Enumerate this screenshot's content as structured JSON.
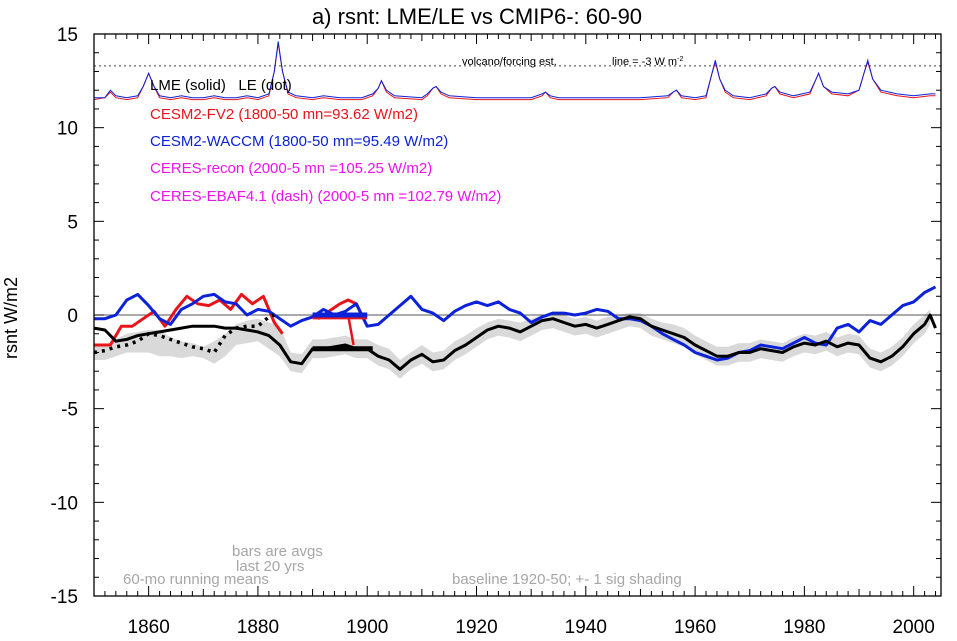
{
  "chart_data": {
    "type": "line",
    "title": "a) rsnt: LME/LE vs CMIP6-: 60-90",
    "xlabel": "",
    "ylabel": "rsnt W/m2",
    "xlim": [
      1850,
      2005
    ],
    "ylim": [
      -15,
      15
    ],
    "x_ticks": [
      1860,
      1880,
      1900,
      1920,
      1940,
      1960,
      1980,
      2000
    ],
    "y_ticks": [
      -15,
      -10,
      -5,
      0,
      5,
      10,
      15
    ],
    "x_tick_labels": [
      "1860",
      "1880",
      "1900",
      "1920",
      "1940",
      "1960",
      "1980",
      "2000"
    ],
    "y_tick_labels": [
      "-15",
      "-10",
      "-5",
      "0",
      "5",
      "10",
      "15"
    ],
    "zero_line": 0,
    "legend": {
      "header": "LME (solid)   LE (dot)",
      "entries": [
        {
          "label": "CESM2-FV2 (1800-50 mn=93.62 W/m2)",
          "color": "#e8141b"
        },
        {
          "label": "CESM2-WACCM (1800-50 mn=95.49 W/m2)",
          "color": "#0c22d8"
        },
        {
          "label": "CERES-recon (2000-5 mn =105.25 W/m2)",
          "color": "#ee12ee"
        },
        {
          "label": "CERES-EBAF4.1 (dash) (2000-5 mn =102.79 W/m2)",
          "color": "#ee12ee"
        }
      ]
    },
    "annotations": {
      "volcano": "volcano/forcing est.",
      "line": "line = -3 W m",
      "line_sup": "-2",
      "bars": "bars are avgs",
      "last20": "last 20 yrs",
      "running": "60-mo running means",
      "baseline": "baseline 1920-50; +- 1 sig shading"
    },
    "volcano_reference_level": 13.3,
    "series": [
      {
        "name": "CESM2-FV2",
        "color": "#e8141b",
        "x": [
          1850,
          1853,
          1855,
          1857,
          1859,
          1861,
          1863,
          1865,
          1867,
          1869,
          1871,
          1873,
          1875,
          1877,
          1879,
          1881,
          1883,
          1884.5
        ],
        "values": [
          -1.6,
          -1.6,
          -0.6,
          -0.6,
          -0.2,
          0.2,
          -0.6,
          0.3,
          1.0,
          0.6,
          0.5,
          0.8,
          0.3,
          1.1,
          0.6,
          1.0,
          -0.4,
          -1.0
        ]
      },
      {
        "name": "CESM2-FV2 (1890-1900)",
        "color": "#e8141b",
        "x": [
          1891,
          1893,
          1895,
          1896.5,
          1898,
          1899
        ],
        "values": [
          -0.2,
          0.2,
          0.6,
          0.8,
          0.6,
          0.0
        ]
      },
      {
        "name": "CESM2-WACCM",
        "color": "#0c22d8",
        "x": [
          1850,
          1852,
          1854,
          1856,
          1858,
          1860,
          1862,
          1864,
          1866,
          1868,
          1870,
          1872,
          1874,
          1876,
          1878,
          1880,
          1882,
          1884,
          1886,
          1888,
          1890,
          1892,
          1894,
          1896,
          1898,
          1900,
          1902,
          1904,
          1906,
          1908,
          1910,
          1912,
          1914,
          1916,
          1918,
          1920,
          1922,
          1924,
          1926,
          1928,
          1930,
          1932,
          1934,
          1936,
          1938,
          1940,
          1942,
          1944,
          1946,
          1948,
          1950,
          1952,
          1954,
          1956,
          1958,
          1960,
          1962,
          1964,
          1966,
          1968,
          1970,
          1972,
          1974,
          1976,
          1978,
          1980,
          1982,
          1984,
          1986,
          1988,
          1990,
          1992,
          1994,
          1996,
          1998,
          2000,
          2002,
          2004
        ],
        "values": [
          -0.2,
          -0.2,
          0.0,
          0.8,
          1.1,
          0.5,
          -0.2,
          -0.5,
          0.3,
          0.6,
          1.0,
          1.1,
          0.7,
          0.6,
          0.0,
          0.3,
          0.2,
          -0.2,
          -0.6,
          -0.3,
          -0.1,
          0.3,
          0.0,
          0.2,
          0.6,
          -0.6,
          -0.5,
          0.0,
          0.5,
          1.0,
          0.3,
          0.1,
          -0.3,
          0.2,
          0.5,
          0.7,
          0.5,
          0.7,
          0.3,
          0.1,
          -0.4,
          -0.1,
          0.1,
          0.1,
          0.0,
          0.1,
          0.3,
          0.2,
          -0.2,
          -0.2,
          -0.3,
          -0.6,
          -1.0,
          -1.3,
          -1.6,
          -2.0,
          -2.2,
          -2.4,
          -2.3,
          -2.0,
          -1.9,
          -1.6,
          -1.7,
          -1.8,
          -1.5,
          -1.2,
          -1.5,
          -1.6,
          -0.7,
          -0.5,
          -0.9,
          -0.3,
          -0.5,
          0.0,
          0.5,
          0.7,
          1.2,
          1.5
        ]
      },
      {
        "name": "LME mean",
        "color": "#000000",
        "x": [
          1850,
          1852,
          1854,
          1856,
          1858,
          1860,
          1862,
          1864,
          1866,
          1868,
          1870,
          1872,
          1874,
          1876,
          1878,
          1880,
          1882,
          1884,
          1886,
          1888,
          1890,
          1892,
          1894,
          1896,
          1898,
          1900,
          1902,
          1904,
          1906,
          1908,
          1910,
          1912,
          1914,
          1916,
          1918,
          1920,
          1922,
          1924,
          1926,
          1928,
          1930,
          1932,
          1934,
          1936,
          1938,
          1940,
          1942,
          1944,
          1946,
          1948,
          1950,
          1952,
          1954,
          1956,
          1958,
          1960,
          1962,
          1964,
          1966,
          1968,
          1970,
          1972,
          1974,
          1976,
          1978,
          1980,
          1982,
          1984,
          1986,
          1988,
          1990,
          1992,
          1994,
          1996,
          1998,
          2000,
          2002,
          2003,
          2004
        ],
        "values": [
          -0.7,
          -0.8,
          -1.4,
          -1.3,
          -1.1,
          -1.0,
          -0.9,
          -0.8,
          -0.7,
          -0.6,
          -0.6,
          -0.6,
          -0.7,
          -0.7,
          -0.8,
          -0.9,
          -1.1,
          -1.6,
          -2.5,
          -2.6,
          -1.8,
          -1.8,
          -1.7,
          -1.6,
          -1.8,
          -1.8,
          -2.2,
          -2.4,
          -2.9,
          -2.4,
          -2.1,
          -2.5,
          -2.4,
          -1.9,
          -1.6,
          -1.2,
          -0.8,
          -0.6,
          -0.7,
          -0.9,
          -0.6,
          -0.3,
          -0.2,
          -0.4,
          -0.6,
          -0.5,
          -0.7,
          -0.5,
          -0.3,
          -0.1,
          -0.2,
          -0.6,
          -0.8,
          -1.0,
          -1.2,
          -1.6,
          -1.9,
          -2.2,
          -2.2,
          -2.0,
          -2.0,
          -1.8,
          -1.9,
          -2.0,
          -1.7,
          -1.5,
          -1.6,
          -1.4,
          -1.7,
          -1.5,
          -1.6,
          -2.3,
          -2.5,
          -2.2,
          -1.7,
          -1.0,
          -0.5,
          0.0,
          -0.7
        ]
      },
      {
        "name": "LE mean (dot)",
        "color": "#000000",
        "x": [
          1850,
          1852,
          1854,
          1856,
          1858,
          1860,
          1862,
          1864,
          1866,
          1868,
          1870,
          1872,
          1874,
          1876,
          1878,
          1880,
          1882,
          1883
        ],
        "values": [
          -2.0,
          -1.9,
          -1.7,
          -1.6,
          -1.4,
          -1.0,
          -1.1,
          -1.3,
          -1.5,
          -1.7,
          -1.8,
          -2.0,
          -1.1,
          -0.7,
          -0.6,
          -0.6,
          -0.1,
          0.0
        ]
      }
    ],
    "shading": {
      "color": "#d9d9d9",
      "x": [
        1850,
        1852,
        1854,
        1856,
        1858,
        1860,
        1862,
        1864,
        1866,
        1868,
        1870,
        1872,
        1874,
        1876,
        1878,
        1880,
        1882,
        1884,
        1886,
        1888,
        1890,
        1892,
        1894,
        1896,
        1898,
        1900,
        1902,
        1904,
        1906,
        1908,
        1910,
        1912,
        1914,
        1916,
        1918,
        1920,
        1922,
        1924,
        1926,
        1928,
        1930,
        1932,
        1934,
        1936,
        1938,
        1940,
        1942,
        1944,
        1946,
        1948,
        1950,
        1952,
        1954,
        1956,
        1958,
        1960,
        1962,
        1964,
        1966,
        1968,
        1970,
        1972,
        1974,
        1976,
        1978,
        1980,
        1982,
        1984,
        1986,
        1988,
        1990,
        1992,
        1994,
        1996,
        1998,
        2000,
        2002,
        2003
      ],
      "upper": [
        -1.6,
        -1.6,
        -1.3,
        -1.0,
        -0.9,
        -0.8,
        -0.8,
        -1.2,
        -1.4,
        -1.5,
        -1.7,
        -1.4,
        -1.0,
        -0.5,
        -0.3,
        -0.2,
        -0.4,
        -0.6,
        -2.0,
        -2.1,
        -1.3,
        -1.3,
        -1.2,
        -1.1,
        -1.3,
        -1.3,
        -1.6,
        -1.8,
        -2.4,
        -2.0,
        -1.6,
        -2.0,
        -1.9,
        -1.4,
        -1.1,
        -0.7,
        -0.4,
        -0.2,
        -0.3,
        -0.4,
        -0.2,
        0.0,
        0.0,
        0.0,
        -0.2,
        -0.1,
        -0.3,
        -0.1,
        0.0,
        0.1,
        0.1,
        -0.2,
        -0.4,
        -0.5,
        -0.7,
        -1.1,
        -1.4,
        -1.7,
        -1.7,
        -1.5,
        -1.5,
        -1.3,
        -1.4,
        -1.5,
        -1.2,
        -1.0,
        -1.1,
        -0.9,
        -1.2,
        -1.0,
        -1.1,
        -1.8,
        -2.0,
        -1.7,
        -1.2,
        -0.5,
        0.0,
        0.3
      ],
      "lower": [
        -2.4,
        -2.4,
        -2.2,
        -2.0,
        -2.0,
        -2.0,
        -2.2,
        -2.2,
        -2.3,
        -2.2,
        -2.3,
        -2.6,
        -2.2,
        -1.6,
        -1.5,
        -1.4,
        -1.8,
        -2.2,
        -3.0,
        -3.1,
        -2.3,
        -2.3,
        -2.2,
        -2.1,
        -2.3,
        -2.3,
        -2.7,
        -2.9,
        -3.4,
        -2.9,
        -2.6,
        -3.0,
        -2.9,
        -2.4,
        -2.1,
        -1.7,
        -1.3,
        -1.1,
        -1.2,
        -1.4,
        -1.1,
        -0.8,
        -0.7,
        -0.9,
        -1.1,
        -1.0,
        -1.2,
        -1.0,
        -0.8,
        -0.6,
        -0.7,
        -1.1,
        -1.3,
        -1.5,
        -1.7,
        -2.1,
        -2.4,
        -2.7,
        -2.7,
        -2.5,
        -2.5,
        -2.3,
        -2.4,
        -2.5,
        -2.2,
        -2.0,
        -2.1,
        -1.9,
        -2.2,
        -2.0,
        -2.1,
        -2.8,
        -3.0,
        -2.7,
        -2.2,
        -1.5,
        -1.0,
        -0.5
      ]
    },
    "volcano_series": [
      {
        "name": "volcanic forcing (red)",
        "color": "#e8141b",
        "x": [
          1850,
          1852,
          1853,
          1854,
          1856,
          1858,
          1859,
          1860,
          1861,
          1862,
          1864,
          1866,
          1868,
          1870,
          1872,
          1874,
          1876,
          1878,
          1880,
          1882,
          1883,
          1883.7,
          1884.5,
          1885.5,
          1887,
          1890,
          1892,
          1895,
          1899,
          1901,
          1902,
          1902.6,
          1903.5,
          1905,
          1910,
          1911,
          1912,
          1912.6,
          1913.5,
          1915,
          1920,
          1925,
          1930,
          1932,
          1932.6,
          1933.5,
          1935,
          1940,
          1945,
          1950,
          1955,
          1956,
          1956.6,
          1957.5,
          1960,
          1962,
          1963,
          1963.7,
          1964.5,
          1965.5,
          1967,
          1970,
          1973,
          1974,
          1974.6,
          1975.5,
          1978,
          1981,
          1982,
          1982.6,
          1983.5,
          1985,
          1988,
          1990,
          1991,
          1991.6,
          1992.5,
          1994,
          1997,
          2000,
          2003,
          2004
        ],
        "values": [
          11.5,
          11.6,
          11.9,
          11.6,
          11.5,
          11.6,
          12.2,
          12.9,
          12.2,
          11.6,
          11.5,
          11.6,
          11.5,
          11.5,
          11.6,
          11.5,
          11.5,
          11.6,
          11.5,
          11.7,
          13.0,
          14.5,
          13.0,
          11.8,
          11.6,
          11.5,
          11.6,
          11.5,
          11.5,
          11.7,
          12.1,
          12.5,
          11.9,
          11.6,
          11.5,
          11.7,
          12.1,
          12.2,
          11.8,
          11.6,
          11.5,
          11.5,
          11.5,
          11.7,
          11.9,
          11.6,
          11.5,
          11.5,
          11.5,
          11.5,
          11.6,
          11.9,
          12.0,
          11.6,
          11.5,
          11.6,
          12.8,
          13.5,
          12.6,
          11.9,
          11.6,
          11.5,
          11.7,
          12.1,
          12.2,
          11.8,
          11.6,
          11.8,
          12.5,
          12.9,
          12.2,
          11.8,
          11.7,
          12.0,
          13.0,
          13.5,
          12.6,
          11.9,
          11.7,
          11.6,
          11.7,
          11.7
        ]
      },
      {
        "name": "volcanic forcing (blue)",
        "color": "#0c22d8",
        "x": [
          1850,
          1852,
          1853,
          1854,
          1856,
          1858,
          1859,
          1860,
          1861,
          1862,
          1864,
          1866,
          1868,
          1870,
          1872,
          1874,
          1876,
          1878,
          1880,
          1882,
          1883,
          1883.7,
          1884.5,
          1885.5,
          1887,
          1890,
          1892,
          1895,
          1899,
          1901,
          1902,
          1902.6,
          1903.5,
          1905,
          1910,
          1911,
          1912,
          1912.6,
          1913.5,
          1915,
          1920,
          1925,
          1930,
          1932,
          1932.6,
          1933.5,
          1935,
          1940,
          1945,
          1950,
          1955,
          1956,
          1956.6,
          1957.5,
          1960,
          1962,
          1963,
          1963.7,
          1964.5,
          1965.5,
          1967,
          1970,
          1973,
          1974,
          1974.6,
          1975.5,
          1978,
          1981,
          1982,
          1982.6,
          1983.5,
          1985,
          1988,
          1990,
          1991,
          1991.6,
          1992.5,
          1994,
          1997,
          2000,
          2003,
          2004
        ],
        "values": [
          11.6,
          11.6,
          12.0,
          11.7,
          11.6,
          11.7,
          12.2,
          12.9,
          12.2,
          11.7,
          11.6,
          11.7,
          11.6,
          11.6,
          11.7,
          11.6,
          11.6,
          11.7,
          11.6,
          11.8,
          13.0,
          14.6,
          13.0,
          11.9,
          11.7,
          11.6,
          11.7,
          11.6,
          11.6,
          11.8,
          12.1,
          12.5,
          12.0,
          11.7,
          11.6,
          11.8,
          12.1,
          12.2,
          11.9,
          11.7,
          11.6,
          11.6,
          11.6,
          11.8,
          11.9,
          11.7,
          11.6,
          11.6,
          11.6,
          11.6,
          11.7,
          11.9,
          12.0,
          11.7,
          11.6,
          11.7,
          12.8,
          13.6,
          12.6,
          12.0,
          11.7,
          11.6,
          11.8,
          12.1,
          12.2,
          11.9,
          11.7,
          11.9,
          12.5,
          12.9,
          12.2,
          11.9,
          11.8,
          12.0,
          13.0,
          13.6,
          12.6,
          12.0,
          11.8,
          11.7,
          11.8,
          11.8
        ]
      }
    ],
    "avg_bars": [
      {
        "name": "CESM2-FV2 last 20 yrs",
        "color": "#e8141b",
        "x": [
          1890,
          1900
        ],
        "value": -0.1
      },
      {
        "name": "CESM2-WACCM last 20 yrs",
        "color": "#0c22d8",
        "x": [
          1890,
          1900
        ],
        "value": 0.0
      },
      {
        "name": "LME last 20 yrs",
        "color": "#000000",
        "x": [
          1890,
          1901
        ],
        "value": -1.8
      }
    ],
    "red_drop": {
      "x": [
        1896.5,
        1897.5
      ],
      "values": [
        0.0,
        -1.6
      ]
    }
  }
}
